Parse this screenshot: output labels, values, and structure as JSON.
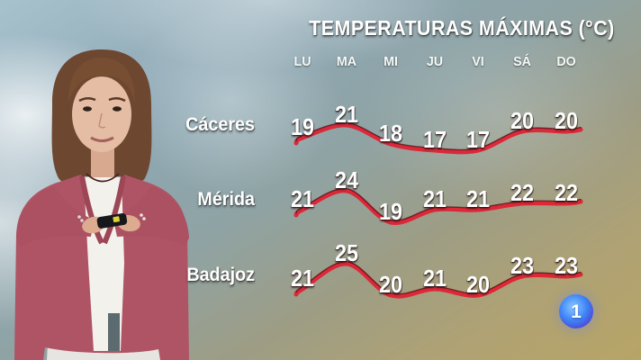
{
  "broadcast": {
    "channel_logo": "1",
    "presenter": "weather-presenter-holding-clicker"
  },
  "chart_data": {
    "type": "line",
    "title": "TEMPERATURAS MÁXIMAS (°C)",
    "unit": "°C",
    "categories": [
      "LU",
      "MA",
      "MI",
      "JU",
      "VI",
      "SÁ",
      "DO"
    ],
    "series": [
      {
        "name": "Cáceres",
        "values": [
          19,
          21,
          18,
          17,
          17,
          20,
          20
        ]
      },
      {
        "name": "Mérida",
        "values": [
          21,
          24,
          19,
          21,
          21,
          22,
          22
        ]
      },
      {
        "name": "Badajoz",
        "values": [
          21,
          25,
          20,
          21,
          20,
          23,
          23
        ]
      }
    ],
    "legend_position": "row-labels-left",
    "grid": false,
    "line_color": "#e11f32"
  },
  "colors": {
    "curve_red": "#e11f32",
    "logo_blue": "#3f86f8",
    "text_white": "#ffffff"
  }
}
